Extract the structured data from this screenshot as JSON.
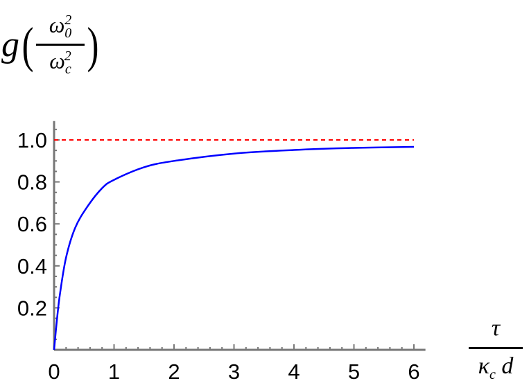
{
  "chart_data": {
    "type": "line",
    "ylabel": {
      "func": "g",
      "num_base": "ω",
      "num_sub": "0",
      "num_sup": "2",
      "den_base": "ω",
      "den_sub": "c",
      "den_sup": "2"
    },
    "xlabel": {
      "num": "τ",
      "den_base": "κ",
      "den_sub": "c",
      "den_tail": " d"
    },
    "xlim": [
      0,
      6.1
    ],
    "ylim": [
      0,
      1.09
    ],
    "xticks": [
      0,
      1,
      2,
      3,
      4,
      5,
      6
    ],
    "yticks": [
      0.2,
      0.4,
      0.6,
      0.8,
      1.0
    ],
    "ytick_labels": [
      "0.2",
      "0.4",
      "0.6",
      "0.8",
      "1.0"
    ],
    "grid": false,
    "series": [
      {
        "color": "#0000ff",
        "style": "solid",
        "x": [
          0,
          0.05,
          0.1,
          0.2,
          0.35,
          0.55,
          0.8,
          1,
          1.5,
          2,
          3,
          4,
          5,
          6
        ],
        "y": [
          0,
          0.15,
          0.27,
          0.44,
          0.58,
          0.68,
          0.77,
          0.81,
          0.87,
          0.9,
          0.935,
          0.952,
          0.962,
          0.967
        ]
      },
      {
        "color": "#ff0000",
        "style": "dashed",
        "x": [
          0,
          6
        ],
        "y": [
          1.0,
          1.0
        ]
      }
    ]
  }
}
